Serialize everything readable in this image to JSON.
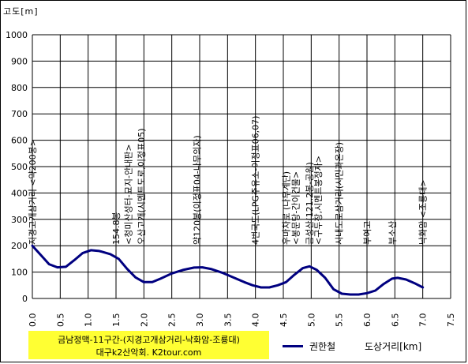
{
  "chart_data": {
    "type": "line",
    "title": "",
    "ylabel": "고도[m]",
    "xlabel": "도상거리[km]",
    "xlim": [
      0,
      7.5
    ],
    "ylim": [
      0,
      1000
    ],
    "x_ticks": [
      "0.0",
      "0.5",
      "1.0",
      "1.5",
      "2.0",
      "2.5",
      "3.0",
      "3.5",
      "4.0",
      "4.5",
      "5.0",
      "5.5",
      "6.0",
      "6.5",
      "7.0",
      "7.5"
    ],
    "y_ticks": [
      "0",
      "100",
      "200",
      "300",
      "400",
      "500",
      "600",
      "700",
      "800",
      "900",
      "1000"
    ],
    "grid": true,
    "legend_position": "bottom",
    "series": [
      {
        "name": "권한철",
        "color": "#000080",
        "points": [
          [
            0.0,
            200
          ],
          [
            0.15,
            165
          ],
          [
            0.3,
            130
          ],
          [
            0.45,
            118
          ],
          [
            0.6,
            120
          ],
          [
            0.75,
            145
          ],
          [
            0.9,
            172
          ],
          [
            1.05,
            183
          ],
          [
            1.2,
            180
          ],
          [
            1.4,
            168
          ],
          [
            1.55,
            150
          ],
          [
            1.7,
            112
          ],
          [
            1.85,
            80
          ],
          [
            2.0,
            62
          ],
          [
            2.15,
            62
          ],
          [
            2.3,
            75
          ],
          [
            2.5,
            95
          ],
          [
            2.7,
            108
          ],
          [
            2.9,
            117
          ],
          [
            3.05,
            118
          ],
          [
            3.2,
            112
          ],
          [
            3.4,
            98
          ],
          [
            3.6,
            80
          ],
          [
            3.8,
            62
          ],
          [
            3.95,
            50
          ],
          [
            4.1,
            42
          ],
          [
            4.25,
            42
          ],
          [
            4.4,
            50
          ],
          [
            4.55,
            62
          ],
          [
            4.7,
            90
          ],
          [
            4.85,
            115
          ],
          [
            4.97,
            122
          ],
          [
            5.1,
            108
          ],
          [
            5.25,
            78
          ],
          [
            5.4,
            35
          ],
          [
            5.55,
            18
          ],
          [
            5.7,
            15
          ],
          [
            5.85,
            15
          ],
          [
            6.0,
            20
          ],
          [
            6.15,
            30
          ],
          [
            6.3,
            55
          ],
          [
            6.45,
            75
          ],
          [
            6.55,
            78
          ],
          [
            6.7,
            72
          ],
          [
            6.85,
            58
          ],
          [
            7.0,
            42
          ]
        ]
      }
    ],
    "annotations": [
      {
        "x": 0.0,
        "text": "지경고개삼거리 <약200봉>"
      },
      {
        "x": 1.5,
        "text": "154.8봉"
      },
      {
        "x": 1.72,
        "text": "<청미산성터-묘지-안내판>"
      },
      {
        "x": 1.95,
        "text": "오산고개(시멘트도로,이정표05)"
      },
      {
        "x": 2.95,
        "text": "약120봉(이정표04-나무의자)"
      },
      {
        "x": 4.0,
        "text": "4번국도(LPG주유소-이정표06,07)"
      },
      {
        "x": 4.55,
        "text": "우마차로 (나무계단)"
      },
      {
        "x": 4.72,
        "text": "<봉문당-간이건물>"
      },
      {
        "x": 4.97,
        "text": "금성산(121.2봉-공원)"
      },
      {
        "x": 5.12,
        "text": "<구두장,시멘트봉정자>"
      },
      {
        "x": 5.5,
        "text": "시내도로삼거리(시민과온장)"
      },
      {
        "x": 6.0,
        "text": "부여고"
      },
      {
        "x": 6.45,
        "text": "부소산"
      },
      {
        "x": 7.0,
        "text": "낙화암 <조룡대>"
      }
    ]
  },
  "credits": {
    "line1": "금남정맥-11구간-(지경고개삼거리-낙화암-조룡대)",
    "line2": "대구k2산악회. K2tour.com"
  }
}
